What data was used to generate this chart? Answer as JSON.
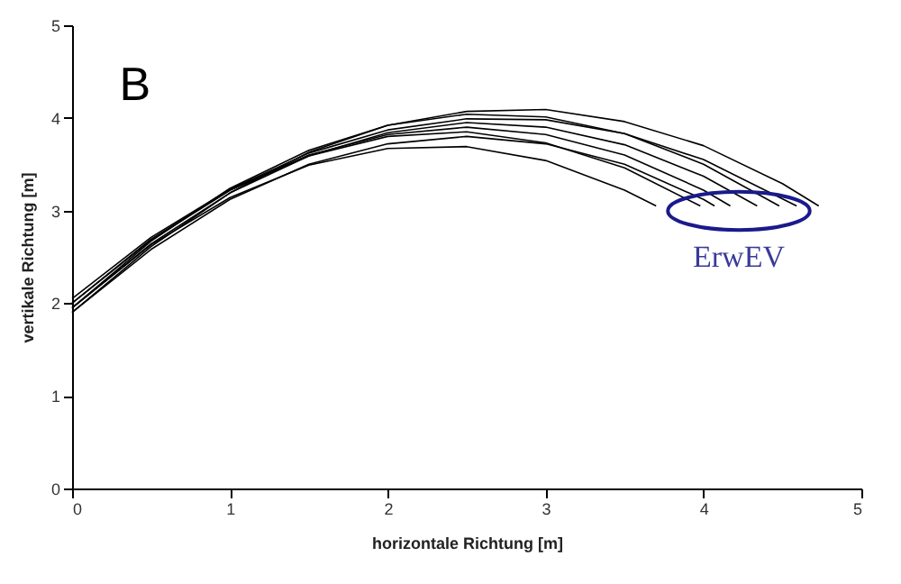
{
  "chart_data": {
    "type": "line",
    "xlabel": "horizontale Richtung [m]",
    "ylabel": "vertikale Richtung [m]",
    "xlim": [
      0,
      5
    ],
    "ylim": [
      0,
      5
    ],
    "xticks": [
      0,
      1,
      2,
      3,
      4,
      5
    ],
    "yticks": [
      0,
      1,
      2,
      3,
      4,
      5
    ],
    "grid": false,
    "marker": "none",
    "line_style": "solid",
    "annotations": [
      "B",
      "ErwEV"
    ],
    "series": [
      {
        "color": "#000000",
        "x": [
          0,
          0.5,
          1,
          1.5,
          2,
          2.5,
          3,
          3.5,
          3.7
        ],
        "values": [
          1.95,
          2.63,
          3.14,
          3.49,
          3.67,
          3.69,
          3.54,
          3.22,
          3.05
        ]
      },
      {
        "color": "#000000",
        "x": [
          0,
          0.5,
          1,
          1.5,
          2,
          2.5,
          3,
          3.5,
          4,
          4.07
        ],
        "values": [
          1.9,
          2.58,
          3.12,
          3.5,
          3.72,
          3.8,
          3.72,
          3.5,
          3.12,
          3.05
        ]
      },
      {
        "color": "#000000",
        "x": [
          0,
          0.5,
          1,
          1.5,
          2,
          2.5,
          3,
          3.5,
          3.98
        ],
        "values": [
          2.0,
          2.69,
          3.22,
          3.59,
          3.8,
          3.85,
          3.73,
          3.46,
          3.05
        ]
      },
      {
        "color": "#000000",
        "x": [
          0,
          0.5,
          1,
          1.5,
          2,
          2.5,
          3,
          3.5,
          4,
          4.34
        ],
        "values": [
          1.95,
          2.64,
          3.19,
          3.59,
          3.84,
          3.95,
          3.9,
          3.71,
          3.37,
          3.05
        ]
      },
      {
        "color": "#000000",
        "x": [
          0,
          0.5,
          1,
          1.5,
          2,
          2.5,
          3,
          3.5,
          4,
          4.59
        ],
        "values": [
          2.05,
          2.71,
          3.23,
          3.62,
          3.87,
          3.99,
          3.98,
          3.83,
          3.55,
          3.05
        ]
      },
      {
        "color": "#000000",
        "x": [
          0,
          0.5,
          1,
          1.5,
          2,
          2.5,
          3,
          3.5,
          4,
          4.5,
          4.73
        ],
        "values": [
          1.9,
          2.61,
          3.19,
          3.63,
          3.92,
          4.07,
          4.09,
          3.96,
          3.7,
          3.29,
          3.05
        ]
      },
      {
        "color": "#000000",
        "x": [
          0,
          0.5,
          1,
          1.5,
          2,
          2.5,
          3,
          3.5,
          4,
          4.17
        ],
        "values": [
          2.0,
          2.68,
          3.22,
          3.6,
          3.82,
          3.9,
          3.82,
          3.6,
          3.22,
          3.05
        ]
      },
      {
        "color": "#000000",
        "x": [
          0,
          0.5,
          1,
          1.5,
          2,
          2.5,
          3,
          3.5,
          4,
          4.48
        ],
        "values": [
          1.95,
          2.67,
          3.24,
          3.65,
          3.92,
          4.04,
          4.01,
          3.83,
          3.5,
          3.05
        ]
      }
    ]
  }
}
